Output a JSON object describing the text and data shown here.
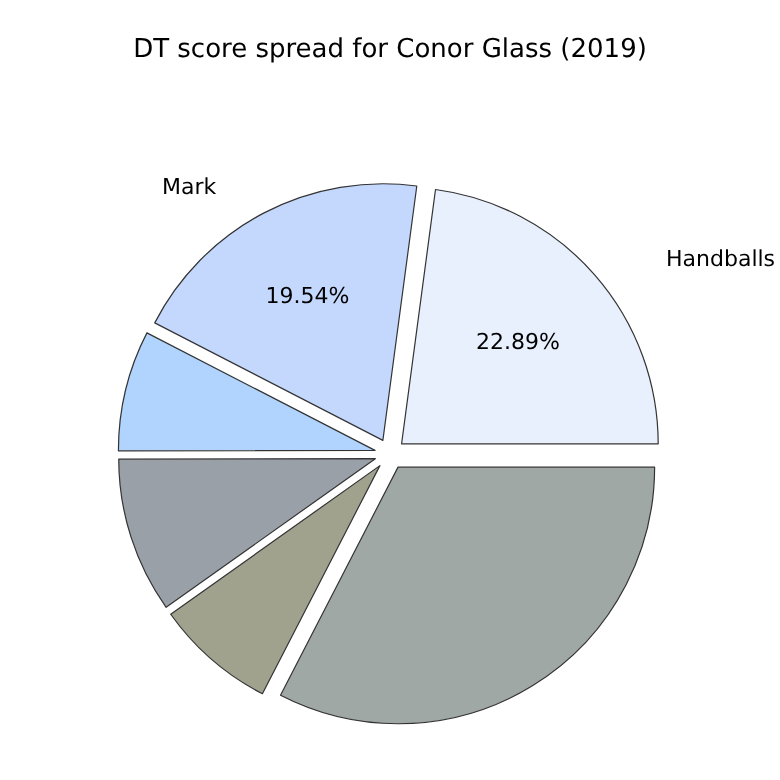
{
  "chart_data": {
    "type": "pie",
    "title": "DT score spread for Conor Glass (2019)",
    "categories": [
      "Handballs",
      "Mark",
      null,
      null,
      null,
      null
    ],
    "values": [
      22.89,
      19.54,
      7.6,
      9.8,
      7.6,
      32.57
    ],
    "value_labels": [
      "22.89%",
      "19.54%",
      null,
      null,
      null,
      null
    ],
    "colors": [
      "#e8f0fe",
      "#c4d8fe",
      "#b0d4fe",
      "#9aa0a8",
      "#a0a28e",
      "#a0a8a6"
    ],
    "legend": false
  }
}
